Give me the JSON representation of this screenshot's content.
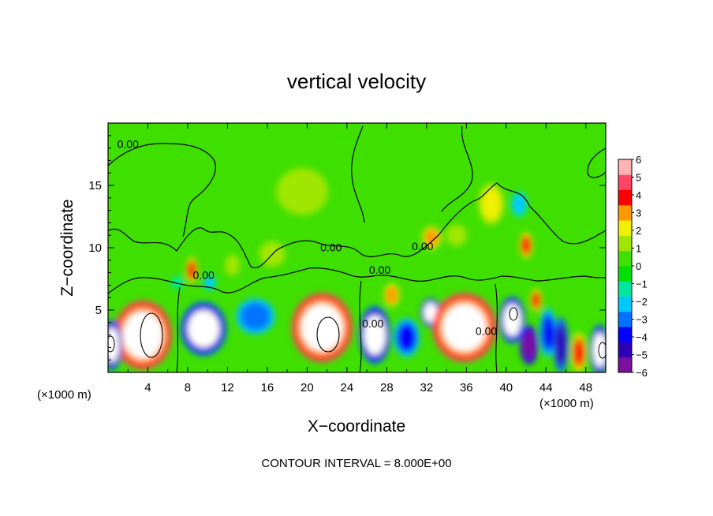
{
  "chart_data": {
    "type": "heatmap",
    "title": "vertical velocity",
    "xlabel": "X−coordinate",
    "ylabel": "Z−coordinate",
    "x_unit_left": "(×1000 m)",
    "x_unit_right": "(×1000 m)",
    "xlim": [
      0,
      50
    ],
    "ylim": [
      0,
      20
    ],
    "x_ticks": [
      4,
      8,
      12,
      16,
      20,
      24,
      28,
      32,
      36,
      40,
      44,
      48
    ],
    "x_tick_labels": [
      "4",
      "8",
      "12",
      "16",
      "20",
      "24",
      "28",
      "32",
      "36",
      "40",
      "44",
      "48"
    ],
    "y_ticks": [
      5,
      10,
      15
    ],
    "y_tick_labels": [
      "5",
      "10",
      "15"
    ],
    "colorbar": {
      "min": -6,
      "max": 6,
      "ticks": [
        6,
        5,
        4,
        3,
        2,
        1,
        0,
        -1,
        -2,
        -3,
        -4,
        -5,
        -6
      ],
      "tick_labels": [
        "6",
        "5",
        "4",
        "3",
        "2",
        "1",
        "0",
        "−1",
        "−2",
        "−3",
        "−4",
        "−5",
        "−6"
      ],
      "colors": [
        "#7a0fa0",
        "#2e00b8",
        "#0000ff",
        "#0073ff",
        "#00c8ff",
        "#00e8a0",
        "#00e000",
        "#40e000",
        "#a0e600",
        "#f0f000",
        "#ff9900",
        "#ff0000",
        "#ff4466",
        "#ffb3b3"
      ],
      "saturation_color": "#ffffff"
    },
    "contour_interval_text": "CONTOUR INTERVAL = 8.000E+00",
    "contour_labels": [
      {
        "text": "0.00",
        "x": 2.0,
        "z": 18.0
      },
      {
        "text": "0.00",
        "x": 9.6,
        "z": 7.5
      },
      {
        "text": "0.00",
        "x": 22.4,
        "z": 9.7
      },
      {
        "text": "0.00",
        "x": 26.6,
        "z": 3.6
      },
      {
        "text": "0.00",
        "x": 27.3,
        "z": 7.9
      },
      {
        "text": "0.00",
        "x": 31.6,
        "z": 9.8
      },
      {
        "text": "0.00",
        "x": 38.0,
        "z": 3.0
      }
    ],
    "cells": [
      {
        "x": 3.5,
        "z": 3.0,
        "w": 4.0,
        "h": 3.8,
        "v": 9
      },
      {
        "x": 0.4,
        "z": 2.2,
        "w": 1.4,
        "h": 2.8,
        "v": -8
      },
      {
        "x": 9.6,
        "z": 3.5,
        "w": 3.2,
        "h": 3.0,
        "v": -8
      },
      {
        "x": 14.8,
        "z": 4.5,
        "w": 3.0,
        "h": 2.2,
        "v": -3.2
      },
      {
        "x": 21.5,
        "z": 3.6,
        "w": 4.2,
        "h": 3.8,
        "v": 9
      },
      {
        "x": 26.8,
        "z": 3.0,
        "w": 2.2,
        "h": 3.2,
        "v": -8
      },
      {
        "x": 30.0,
        "z": 2.8,
        "w": 2.0,
        "h": 2.4,
        "v": -3.5
      },
      {
        "x": 32.4,
        "z": 4.8,
        "w": 1.4,
        "h": 1.6,
        "v": -7
      },
      {
        "x": 35.8,
        "z": 3.6,
        "w": 4.4,
        "h": 3.8,
        "v": 8
      },
      {
        "x": 40.6,
        "z": 4.2,
        "w": 1.8,
        "h": 2.6,
        "v": -8
      },
      {
        "x": 42.3,
        "z": 2.2,
        "w": 1.4,
        "h": 2.4,
        "v": -6
      },
      {
        "x": 44.2,
        "z": 3.2,
        "w": 1.3,
        "h": 3.0,
        "v": -3.5
      },
      {
        "x": 45.5,
        "z": 2.2,
        "w": 1.2,
        "h": 3.4,
        "v": -4.5
      },
      {
        "x": 47.3,
        "z": 1.6,
        "w": 1.2,
        "h": 2.4,
        "v": 4
      },
      {
        "x": 49.4,
        "z": 1.8,
        "w": 1.4,
        "h": 2.8,
        "v": -8
      },
      {
        "x": 8.4,
        "z": 8.2,
        "w": 0.9,
        "h": 1.6,
        "v": 4
      },
      {
        "x": 16.5,
        "z": 9.5,
        "w": 2.0,
        "h": 1.6,
        "v": 1.6
      },
      {
        "x": 19.5,
        "z": 14.5,
        "w": 5.0,
        "h": 3.6,
        "v": 1
      },
      {
        "x": 28.5,
        "z": 6.2,
        "w": 1.2,
        "h": 1.4,
        "v": 3
      },
      {
        "x": 32.5,
        "z": 10.8,
        "w": 1.4,
        "h": 1.4,
        "v": 3
      },
      {
        "x": 38.5,
        "z": 13.5,
        "w": 2.0,
        "h": 2.6,
        "v": 2
      },
      {
        "x": 41.3,
        "z": 13.5,
        "w": 1.3,
        "h": 1.6,
        "v": -1.8
      },
      {
        "x": 42.0,
        "z": 10.2,
        "w": 1.0,
        "h": 1.6,
        "v": 3.8
      },
      {
        "x": 43.0,
        "z": 5.8,
        "w": 0.9,
        "h": 1.4,
        "v": 3.6
      },
      {
        "x": 35.0,
        "z": 11.0,
        "w": 2.0,
        "h": 1.6,
        "v": 1.4
      },
      {
        "x": 10.2,
        "z": 7.2,
        "w": 1.0,
        "h": 1.0,
        "v": -1.8
      },
      {
        "x": 7.0,
        "z": 7.2,
        "w": 1.0,
        "h": 0.8,
        "v": -1.6
      },
      {
        "x": 12.5,
        "z": 8.6,
        "w": 1.4,
        "h": 1.6,
        "v": 1.2
      }
    ]
  }
}
